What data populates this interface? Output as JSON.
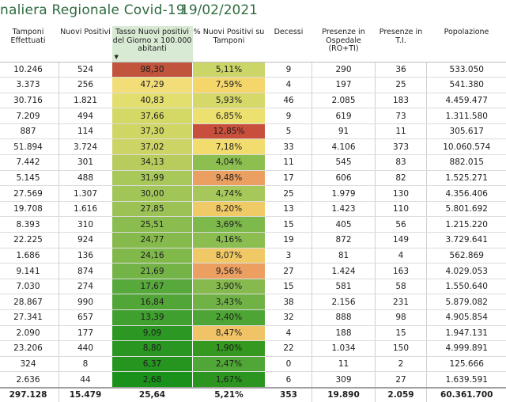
{
  "title": "naliera Regionale Covid-19",
  "date": "19/02/2021",
  "headers": [
    "Tamponi Effettuati",
    "Nuovi Positivi",
    "Tasso Nuovi positivi del Giorno x 100.000 abitanti",
    "% Nuovi Positivi su Tamponi",
    "Decessi",
    "Presenze in Ospedale (RO+TI)",
    "Presenze in T.I.",
    "Popolazione"
  ],
  "sort_icon": "sort-desc-icon",
  "rows": [
    [
      "10.246",
      "524",
      "98,30",
      "5,11%",
      "9",
      "290",
      "36",
      "533.050"
    ],
    [
      "3.373",
      "256",
      "47,29",
      "7,59%",
      "4",
      "197",
      "25",
      "541.380"
    ],
    [
      "30.716",
      "1.821",
      "40,83",
      "5,93%",
      "46",
      "2.085",
      "183",
      "4.459.477"
    ],
    [
      "7.209",
      "494",
      "37,66",
      "6,85%",
      "9",
      "619",
      "73",
      "1.311.580"
    ],
    [
      "887",
      "114",
      "37,30",
      "12,85%",
      "5",
      "91",
      "11",
      "305.617"
    ],
    [
      "51.894",
      "3.724",
      "37,02",
      "7,18%",
      "33",
      "4.106",
      "373",
      "10.060.574"
    ],
    [
      "7.442",
      "301",
      "34,13",
      "4,04%",
      "11",
      "545",
      "83",
      "882.015"
    ],
    [
      "5.145",
      "488",
      "31,99",
      "9,48%",
      "17",
      "606",
      "82",
      "1.525.271"
    ],
    [
      "27.569",
      "1.307",
      "30,00",
      "4,74%",
      "25",
      "1.979",
      "130",
      "4.356.406"
    ],
    [
      "19.708",
      "1.616",
      "27,85",
      "8,20%",
      "13",
      "1.423",
      "110",
      "5.801.692"
    ],
    [
      "8.393",
      "310",
      "25,51",
      "3,69%",
      "15",
      "405",
      "56",
      "1.215.220"
    ],
    [
      "22.225",
      "924",
      "24,77",
      "4,16%",
      "19",
      "872",
      "149",
      "3.729.641"
    ],
    [
      "1.686",
      "136",
      "24,16",
      "8,07%",
      "3",
      "81",
      "4",
      "562.869"
    ],
    [
      "9.141",
      "874",
      "21,69",
      "9,56%",
      "27",
      "1.424",
      "163",
      "4.029.053"
    ],
    [
      "7.030",
      "274",
      "17,67",
      "3,90%",
      "15",
      "581",
      "58",
      "1.550.640"
    ],
    [
      "28.867",
      "990",
      "16,84",
      "3,43%",
      "38",
      "2.156",
      "231",
      "5.879.082"
    ],
    [
      "27.341",
      "657",
      "13,39",
      "2,40%",
      "32",
      "888",
      "98",
      "4.905.854"
    ],
    [
      "2.090",
      "177",
      "9,09",
      "8,47%",
      "4",
      "188",
      "15",
      "1.947.131"
    ],
    [
      "23.206",
      "440",
      "8,80",
      "1,90%",
      "22",
      "1.034",
      "150",
      "4.999.891"
    ],
    [
      "324",
      "8",
      "6,37",
      "2,47%",
      "0",
      "11",
      "2",
      "125.666"
    ],
    [
      "2.636",
      "44",
      "2,68",
      "1,67%",
      "6",
      "309",
      "27",
      "1.639.591"
    ]
  ],
  "totals": [
    "297.128",
    "15.479",
    "25,64",
    "5,21%",
    "353",
    "19.890",
    "2.059",
    "60.361.700"
  ],
  "tasso_colors": [
    "#c0543c",
    "#f2dd78",
    "#e3df6e",
    "#d4d865",
    "#cfd664",
    "#cbd464",
    "#b7cc5d",
    "#a8c85a",
    "#a2c558",
    "#9cc256",
    "#8bbc4f",
    "#86ba4c",
    "#80b84a",
    "#74b446",
    "#58a93b",
    "#52a638",
    "#40a02f",
    "#2c9823",
    "#2a9622",
    "#25951f",
    "#1a911a"
  ],
  "perc_colors": [
    "#cbd568",
    "#f4d66b",
    "#d6d86a",
    "#ece06f",
    "#c84f3c",
    "#f2dc6e",
    "#8dbe50",
    "#eba062",
    "#a6c759",
    "#f0ca66",
    "#7db94b",
    "#8bbd50",
    "#f0c966",
    "#eb9f61",
    "#86ba4e",
    "#70b246",
    "#4da535",
    "#f0c466",
    "#35981f",
    "#50a636",
    "#2c9520"
  ]
}
